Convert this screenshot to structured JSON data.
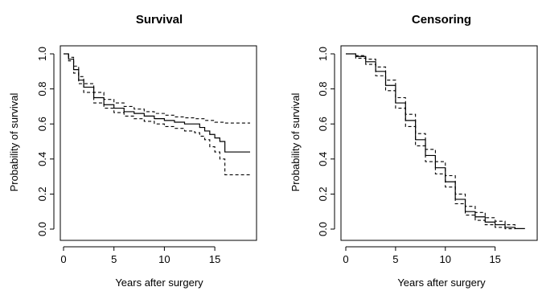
{
  "chart_data": [
    {
      "type": "line",
      "title": "Survival",
      "xlabel": "Years after surgery",
      "ylabel": "Probability of survival",
      "xlim": [
        0,
        18.5
      ],
      "ylim": [
        0,
        1
      ],
      "xticks": [
        "0",
        "5",
        "10",
        "15"
      ],
      "yticks": [
        "0.0",
        "0.2",
        "0.4",
        "0.6",
        "0.8",
        "1.0"
      ],
      "grid": false,
      "step": true,
      "series": [
        {
          "role": "estimate",
          "style": "solid",
          "x": [
            0,
            0.5,
            1,
            1.5,
            2,
            3,
            4,
            5,
            6,
            7,
            8,
            9,
            10,
            11,
            12,
            12.5,
            13,
            13.5,
            14,
            14.5,
            15,
            15.5,
            16,
            18.5
          ],
          "y": [
            1.0,
            0.97,
            0.91,
            0.85,
            0.81,
            0.75,
            0.71,
            0.69,
            0.67,
            0.66,
            0.645,
            0.63,
            0.62,
            0.61,
            0.6,
            0.6,
            0.6,
            0.58,
            0.56,
            0.54,
            0.52,
            0.5,
            0.44,
            0.44
          ]
        },
        {
          "role": "upper",
          "style": "dashed",
          "x": [
            0,
            0.5,
            1,
            1.5,
            2,
            3,
            4,
            5,
            6,
            7,
            8,
            9,
            10,
            11,
            12,
            13,
            14,
            15,
            16,
            18.5
          ],
          "y": [
            1.0,
            0.98,
            0.93,
            0.87,
            0.83,
            0.78,
            0.74,
            0.72,
            0.7,
            0.685,
            0.67,
            0.66,
            0.65,
            0.64,
            0.635,
            0.63,
            0.62,
            0.61,
            0.605,
            0.605
          ]
        },
        {
          "role": "lower",
          "style": "dashed",
          "x": [
            0,
            0.5,
            1,
            1.5,
            2,
            3,
            4,
            5,
            6,
            7,
            8,
            9,
            10,
            11,
            12,
            13,
            13.5,
            14,
            14.5,
            15,
            15.5,
            16,
            18.5
          ],
          "y": [
            1.0,
            0.96,
            0.89,
            0.83,
            0.78,
            0.72,
            0.69,
            0.665,
            0.645,
            0.63,
            0.615,
            0.6,
            0.585,
            0.575,
            0.56,
            0.55,
            0.53,
            0.51,
            0.47,
            0.44,
            0.4,
            0.31,
            0.31
          ]
        }
      ]
    },
    {
      "type": "line",
      "title": "Censoring",
      "xlabel": "Years after surgery",
      "ylabel": "Probability of survival",
      "xlim": [
        0,
        18.5
      ],
      "ylim": [
        0,
        1
      ],
      "xticks": [
        "0",
        "5",
        "10",
        "15"
      ],
      "yticks": [
        "0.0",
        "0.2",
        "0.4",
        "0.6",
        "0.8",
        "1.0"
      ],
      "grid": false,
      "step": true,
      "series": [
        {
          "role": "estimate",
          "style": "solid",
          "x": [
            0,
            1,
            2,
            3,
            4,
            5,
            6,
            7,
            8,
            9,
            10,
            11,
            12,
            13,
            14,
            15,
            16,
            17,
            18
          ],
          "y": [
            1.0,
            0.985,
            0.955,
            0.9,
            0.82,
            0.72,
            0.62,
            0.51,
            0.42,
            0.35,
            0.27,
            0.17,
            0.1,
            0.07,
            0.04,
            0.025,
            0.01,
            0.003,
            0.003
          ]
        },
        {
          "role": "upper",
          "style": "dashed",
          "x": [
            0,
            1,
            2,
            3,
            4,
            5,
            6,
            7,
            8,
            9,
            10,
            11,
            12,
            13,
            14,
            15,
            16,
            17
          ],
          "y": [
            1.0,
            0.99,
            0.97,
            0.925,
            0.85,
            0.75,
            0.655,
            0.545,
            0.455,
            0.385,
            0.305,
            0.2,
            0.13,
            0.095,
            0.065,
            0.045,
            0.025,
            0.015
          ]
        },
        {
          "role": "lower",
          "style": "dashed",
          "x": [
            0,
            1,
            2,
            3,
            4,
            5,
            6,
            7,
            8,
            9,
            10,
            11,
            12,
            13,
            14,
            15,
            16,
            17
          ],
          "y": [
            1.0,
            0.975,
            0.94,
            0.875,
            0.79,
            0.69,
            0.585,
            0.475,
            0.385,
            0.315,
            0.24,
            0.145,
            0.08,
            0.05,
            0.025,
            0.01,
            0.002,
            0.0
          ]
        }
      ]
    }
  ]
}
